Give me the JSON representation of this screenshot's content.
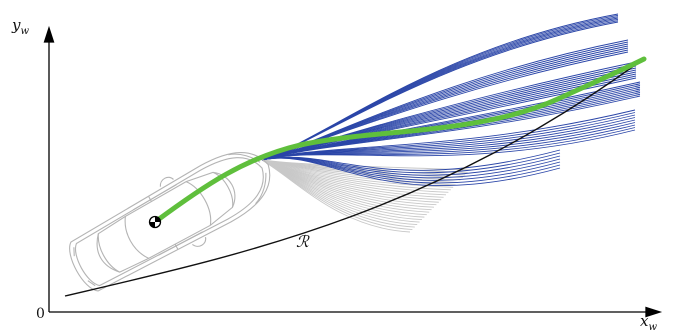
{
  "axes": {
    "x_label": "x",
    "x_label_sub": "w",
    "y_label": "y",
    "y_label_sub": "w",
    "origin_label": "0"
  },
  "reference_label": "ℛ",
  "colors": {
    "background": "#ffffff",
    "axis": "#000000",
    "reference_path": "#111111",
    "feasible_trajectories": "#2b46a8",
    "discarded_trajectories": "#c8c8c8",
    "selected_trajectory": "#5fbf3c",
    "vehicle_outline": "#b4b4b4",
    "center_of_gravity_marker": "#000000"
  },
  "icons": {
    "vehicle": "car-top-view-outline-icon",
    "center_of_gravity": "center-of-gravity-marker-icon"
  }
}
